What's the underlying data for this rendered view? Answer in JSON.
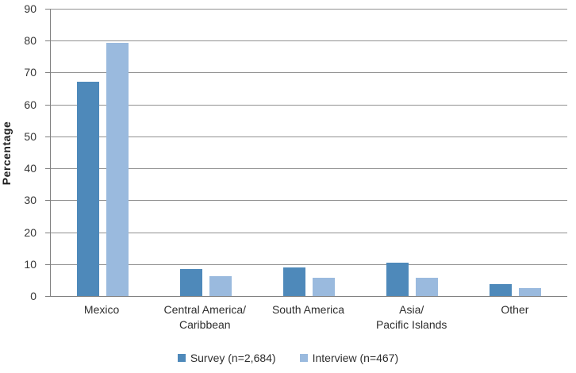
{
  "chart_data": {
    "type": "bar",
    "title": "",
    "ylabel": "Percentage",
    "xlabel": "",
    "ylim": [
      0,
      90
    ],
    "ytick_step": 10,
    "grid": true,
    "legend_position": "bottom",
    "categories": [
      "Mexico",
      "Central America/\nCaribbean",
      "South America",
      "Asia/\nPacific Islands",
      "Other"
    ],
    "series": [
      {
        "name": "Survey (n=2,684)",
        "color": "#4e89ba",
        "values": [
          67.2,
          8.4,
          9.0,
          10.5,
          3.8
        ]
      },
      {
        "name": "Interview (n=467)",
        "color": "#9abade",
        "values": [
          79.4,
          6.2,
          5.8,
          5.6,
          2.5
        ]
      }
    ]
  },
  "colors": {
    "gridline": "#919191",
    "axis": "#7f7f7f",
    "text": "#2e2e2e"
  }
}
